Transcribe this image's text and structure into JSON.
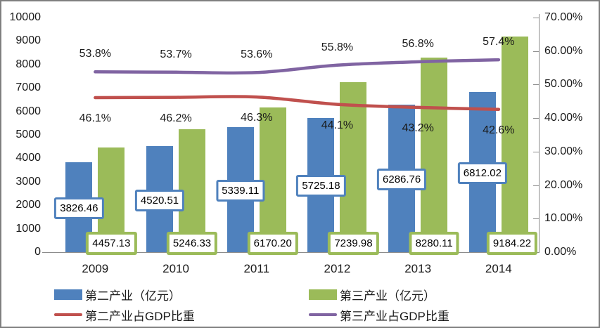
{
  "chart_data": {
    "type": "combo-bar-line",
    "title": "",
    "categories": [
      "2009",
      "2010",
      "2011",
      "2012",
      "2013",
      "2014"
    ],
    "bar_series": [
      {
        "name": "第二产业（亿元）",
        "color": "#4F81BD",
        "axis": "left",
        "values": [
          3826.46,
          4520.51,
          5339.11,
          5725.18,
          6286.76,
          6812.02
        ],
        "labels": [
          "3826.46",
          "4520.51",
          "5339.11",
          "5725.18",
          "6286.76",
          "6812.02"
        ]
      },
      {
        "name": "第三产业（亿元）",
        "color": "#9BBB59",
        "axis": "left",
        "values": [
          4457.13,
          5246.33,
          6170.2,
          7239.98,
          8280.11,
          9184.22
        ],
        "labels": [
          "4457.13",
          "5246.33",
          "6170.20",
          "7239.98",
          "8280.11",
          "9184.22"
        ]
      }
    ],
    "line_series": [
      {
        "name": "第二产业占GDP比重",
        "color": "#C0504D",
        "axis": "right",
        "smooth": true,
        "values": [
          46.1,
          46.2,
          46.3,
          44.1,
          43.2,
          42.6
        ],
        "labels": [
          "46.1%",
          "46.2%",
          "46.3%",
          "44.1%",
          "43.2%",
          "42.6%"
        ],
        "label_position": "below"
      },
      {
        "name": "第三产业占GDP比重",
        "color": "#8064A2",
        "axis": "right",
        "smooth": true,
        "values": [
          53.8,
          53.7,
          53.6,
          55.8,
          56.8,
          57.4
        ],
        "labels": [
          "53.8%",
          "53.7%",
          "53.6%",
          "55.8%",
          "56.8%",
          "57.4%"
        ],
        "label_position": "above"
      }
    ],
    "left_axis": {
      "min": 0,
      "max": 10000,
      "step": 1000,
      "tick_labels": [
        "0",
        "1000",
        "2000",
        "3000",
        "4000",
        "5000",
        "6000",
        "7000",
        "8000",
        "9000",
        "10000"
      ]
    },
    "right_axis": {
      "min": 0,
      "max": 70,
      "step": 10,
      "tick_labels": [
        "0.00%",
        "10.00%",
        "20.00%",
        "30.00%",
        "40.00%",
        "50.00%",
        "60.00%",
        "70.00%"
      ]
    },
    "grid": false,
    "legend_position": "bottom-two-columns"
  }
}
